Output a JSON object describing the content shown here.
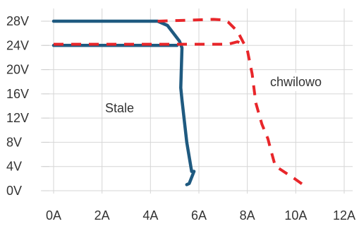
{
  "chart_data": {
    "type": "line",
    "title": "",
    "xlabel": "",
    "ylabel": "",
    "x_tick_labels": [
      "0A",
      "2A",
      "4A",
      "6A",
      "8A",
      "10A",
      "12A"
    ],
    "y_tick_labels": [
      "0V",
      "4V",
      "8V",
      "12V",
      "16V",
      "20V",
      "24V",
      "28V"
    ],
    "xlim": [
      0,
      12
    ],
    "ylim": [
      0,
      28
    ],
    "grid": true,
    "legend": "none",
    "series": [
      {
        "name": "Stale",
        "color": "#1f5a80",
        "style": "solid",
        "lines": [
          {
            "x": [
              0,
              4.3,
              4.7,
              5.2,
              5.3,
              5.25,
              5.3,
              5.5,
              5.7,
              5.8,
              5.6,
              5.5
            ],
            "y": [
              28,
              28,
              27.3,
              24.7,
              23.6,
              17,
              15,
              8,
              3.2,
              3.2,
              1.2,
              1.0
            ]
          },
          {
            "x": [
              0,
              5.1
            ],
            "y": [
              24,
              24
            ]
          }
        ]
      },
      {
        "name": "chwilowo",
        "color": "#e8262a",
        "style": "dashed",
        "lines": [
          {
            "x": [
              4.3,
              6.6,
              7.0,
              7.2,
              7.6,
              7.9,
              8.0,
              8.2,
              8.35,
              8.6,
              8.85,
              9.0,
              9.15,
              9.6,
              9.95,
              10.3
            ],
            "y": [
              28,
              28.3,
              28.2,
              27.9,
              26.3,
              24.0,
              23.2,
              19.3,
              14.5,
              11.0,
              8.6,
              6.3,
              4.1,
              2.9,
              2.0,
              1.0
            ]
          },
          {
            "x": [
              0,
              7.2,
              7.6,
              7.9
            ],
            "y": [
              24.2,
              24.2,
              24.6,
              24.0
            ]
          }
        ]
      }
    ],
    "annotations": [
      {
        "text": "Stale",
        "series": "Stale"
      },
      {
        "text": "chwilowo",
        "series": "chwilowo"
      }
    ]
  }
}
